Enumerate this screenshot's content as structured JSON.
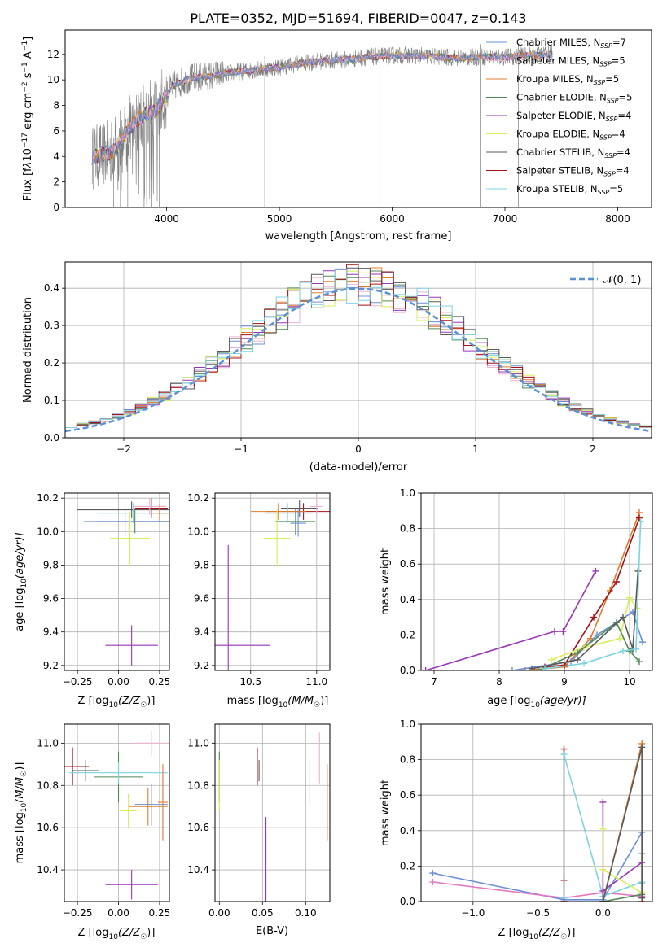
{
  "colors": {
    "chabrier_miles": "#6a8fd8",
    "salpeter_miles": "#e8b4d2",
    "kroupa_miles": "#e07b2a",
    "chabrier_elodie": "#4f8a55",
    "salpeter_elodie": "#9a34b8",
    "kroupa_elodie": "#d8ee5a",
    "chabrier_stelib": "#5a5a5a",
    "salpeter_stelib": "#a50f15",
    "kroupa_stelib": "#7dd3e0",
    "spectrum": "#7f7f7f",
    "normal": "#5b8fd6",
    "pink": "#e377c2"
  },
  "chart_data": [
    {
      "id": "spectrum",
      "type": "line",
      "title": "PLATE=0352, MJD=51694, FIBERID=0047, z=0.143",
      "xlabel": "wavelength [Angstrom, rest frame]",
      "ylabel_main": "Flux [f",
      "ylabel_lambda": "λ",
      "ylabel_rest": "10",
      "ylabel_exp1": "−17",
      "ylabel_mid": " erg cm",
      "ylabel_exp2": "−2",
      "ylabel_s": " s",
      "ylabel_exp3": "−1",
      "ylabel_end": " A",
      "ylabel_exp4": "−1",
      "ylabel_close": "]",
      "xlim": [
        3100,
        8300
      ],
      "ylim": [
        0,
        13.9
      ],
      "xticks": [
        "4000",
        "5000",
        "6000",
        "7000",
        "8000"
      ],
      "xtick_values": [
        4000,
        5000,
        6000,
        7000,
        8000
      ],
      "yticks": [
        "0",
        "2",
        "4",
        "6",
        "8",
        "10",
        "12"
      ],
      "ytick_values": [
        0,
        2,
        4,
        6,
        8,
        10,
        12
      ],
      "legend_position": "top-right",
      "legend": [
        {
          "label": "Chabrier MILES, N",
          "sub": "SSP",
          "count": "=7",
          "color_key": "chabrier_miles"
        },
        {
          "label": "Salpeter MILES, N",
          "sub": "SSP",
          "count": "=5",
          "color_key": "salpeter_miles"
        },
        {
          "label": "Kroupa MILES, N",
          "sub": "SSP",
          "count": "=5",
          "color_key": "kroupa_miles"
        },
        {
          "label": "Chabrier ELODIE, N",
          "sub": "SSP",
          "count": "=5",
          "color_key": "chabrier_elodie"
        },
        {
          "label": "Salpeter ELODIE, N",
          "sub": "SSP",
          "count": "=4",
          "color_key": "salpeter_elodie"
        },
        {
          "label": "Kroupa ELODIE, N",
          "sub": "SSP",
          "count": "=4",
          "color_key": "kroupa_elodie"
        },
        {
          "label": "Chabrier STELIB, N",
          "sub": "SSP",
          "count": "=4",
          "color_key": "chabrier_stelib"
        },
        {
          "label": "Salpeter STELIB, N",
          "sub": "SSP",
          "count": "=4",
          "color_key": "salpeter_stelib"
        },
        {
          "label": "Kroupa STELIB, N",
          "sub": "SSP",
          "count": "=5",
          "color_key": "kroupa_stelib"
        }
      ],
      "continuum": [
        [
          3330,
          3.9
        ],
        [
          3400,
          4.1
        ],
        [
          3500,
          4.3
        ],
        [
          3560,
          4.7
        ],
        [
          3620,
          5.6
        ],
        [
          3700,
          6.5
        ],
        [
          3800,
          7.3
        ],
        [
          3900,
          7.6
        ],
        [
          3960,
          8.3
        ],
        [
          4050,
          9.5
        ],
        [
          4200,
          10.1
        ],
        [
          4400,
          10.3
        ],
        [
          4600,
          10.6
        ],
        [
          4800,
          10.8
        ],
        [
          5000,
          11.0
        ],
        [
          5200,
          11.3
        ],
        [
          5400,
          11.5
        ],
        [
          5600,
          11.6
        ],
        [
          5800,
          11.8
        ],
        [
          6000,
          11.9
        ],
        [
          6200,
          11.9
        ],
        [
          6400,
          11.8
        ],
        [
          6600,
          11.7
        ],
        [
          6800,
          11.8
        ],
        [
          7000,
          11.8
        ],
        [
          7200,
          11.9
        ],
        [
          7420,
          12.0
        ]
      ],
      "spectrum_range": [
        3340,
        7420
      ],
      "deep_spikes": [
        3530,
        3590,
        3655,
        3800,
        3870,
        3935,
        4870,
        5890,
        6780,
        7120
      ]
    },
    {
      "id": "residuals",
      "type": "line",
      "xlabel": "(data-model)/error",
      "ylabel": "Normed distribution",
      "xlim": [
        -2.5,
        2.5
      ],
      "ylim": [
        0,
        0.47
      ],
      "xticks": [
        "−2",
        "−1",
        "0",
        "1",
        "2"
      ],
      "xtick_values": [
        -2,
        -1,
        0,
        1,
        2
      ],
      "yticks": [
        "0.0",
        "0.1",
        "0.2",
        "0.3",
        "0.4"
      ],
      "ytick_values": [
        0,
        0.1,
        0.2,
        0.3,
        0.4
      ],
      "grid": true,
      "legend_position": "top-right",
      "legend_label": "𝒩(0, 1)",
      "bin_width": 0.1
    },
    {
      "id": "age_z",
      "type": "scatter",
      "xlabel": "Z [log",
      "xlabel_sub": "10",
      "xlabel_rest": "(Z/Z",
      "xlabel_sun": "☉",
      "xlabel_close": ")]",
      "ylabel": "age  [log",
      "ylabel_sub": "10",
      "ylabel_rest": "(age/yr)]",
      "xlim": [
        -0.33,
        0.31
      ],
      "ylim": [
        9.17,
        10.23
      ],
      "xticks": [
        "−0.25",
        "0.00",
        "0.25"
      ],
      "xtick_values": [
        -0.25,
        0,
        0.25
      ],
      "yticks": [
        "9.2",
        "9.4",
        "9.6",
        "9.8",
        "10.0",
        "10.2"
      ],
      "ytick_values": [
        9.2,
        9.4,
        9.6,
        9.8,
        10.0,
        10.2
      ],
      "grid": true,
      "points": [
        {
          "x": 0.08,
          "y": 9.32,
          "xerr": 0.16,
          "yerr": 0.12,
          "color_key": "salpeter_elodie"
        },
        {
          "x": 0.08,
          "y": 10.13,
          "xerr": 0.33,
          "yerr": 0.05,
          "color_key": "chabrier_stelib"
        },
        {
          "x": 0.1,
          "y": 10.06,
          "xerr": 0.22,
          "yerr": 0.07,
          "color_key": "chabrier_elodie"
        },
        {
          "x": 0.2,
          "y": 10.14,
          "xerr": 0.1,
          "yerr": 0.06,
          "color_key": "salpeter_stelib"
        },
        {
          "x": 0.09,
          "y": 10.11,
          "xerr": 0.22,
          "yerr": 0.06,
          "color_key": "kroupa_stelib"
        },
        {
          "x": 0.25,
          "y": 10.11,
          "xerr": 0.06,
          "yerr": 0.05,
          "color_key": "kroupa_miles"
        },
        {
          "x": 0.19,
          "y": 10.15,
          "xerr": 0.1,
          "yerr": 0.05,
          "color_key": "salpeter_miles"
        },
        {
          "x": 0.04,
          "y": 10.06,
          "xerr": 0.25,
          "yerr": 0.09,
          "color_key": "chabrier_miles"
        },
        {
          "x": 0.07,
          "y": 9.96,
          "xerr": 0.12,
          "yerr": 0.16,
          "color_key": "kroupa_elodie"
        }
      ]
    },
    {
      "id": "age_mass",
      "type": "scatter",
      "xlabel": "mass [log",
      "xlabel_sub": "10",
      "xlabel_rest": "(M/M",
      "xlabel_sun": "☉",
      "xlabel_close": ")]",
      "xlim": [
        10.23,
        11.1
      ],
      "ylim": [
        9.17,
        10.23
      ],
      "xticks": [
        "10.5",
        "11.0"
      ],
      "xtick_values": [
        10.5,
        11.0
      ],
      "yticks": [
        "9.2",
        "9.4",
        "9.6",
        "9.8",
        "10.0",
        "10.2"
      ],
      "ytick_values": [
        9.2,
        9.4,
        9.6,
        9.8,
        10.0,
        10.2
      ],
      "grid": true,
      "points": [
        {
          "x": 10.33,
          "y": 9.32,
          "xerr": 0.32,
          "yerr": 0.6,
          "color_key": "salpeter_elodie"
        },
        {
          "x": 10.87,
          "y": 10.14,
          "xerr": 0.14,
          "yerr": 0.05,
          "color_key": "chabrier_stelib"
        },
        {
          "x": 10.84,
          "y": 10.06,
          "xerr": 0.15,
          "yerr": 0.08,
          "color_key": "chabrier_elodie"
        },
        {
          "x": 10.9,
          "y": 10.12,
          "xerr": 0.28,
          "yerr": 0.05,
          "color_key": "salpeter_stelib"
        },
        {
          "x": 10.78,
          "y": 10.11,
          "xerr": 0.18,
          "yerr": 0.06,
          "color_key": "kroupa_stelib"
        },
        {
          "x": 10.71,
          "y": 10.12,
          "xerr": 0.21,
          "yerr": 0.05,
          "color_key": "kroupa_miles"
        },
        {
          "x": 11.0,
          "y": 10.15,
          "xerr": 0.05,
          "yerr": 0.06,
          "color_key": "salpeter_miles"
        },
        {
          "x": 10.86,
          "y": 10.05,
          "xerr": 0.06,
          "yerr": 0.08,
          "color_key": "chabrier_miles"
        },
        {
          "x": 10.7,
          "y": 9.96,
          "xerr": 0.1,
          "yerr": 0.17,
          "color_key": "kroupa_elodie"
        }
      ]
    },
    {
      "id": "weight_age",
      "type": "line",
      "xlabel": "age  [log",
      "xlabel_sub": "10",
      "xlabel_rest": "(age/yr)]",
      "ylabel": "mass weight",
      "xlim": [
        6.8,
        10.35
      ],
      "ylim": [
        0,
        1.0
      ],
      "xticks": [
        "7",
        "8",
        "9",
        "10"
      ],
      "xtick_values": [
        7,
        8,
        9,
        10
      ],
      "yticks": [
        "0.0",
        "0.2",
        "0.4",
        "0.6",
        "0.8",
        "1.0"
      ],
      "ytick_values": [
        0,
        0.2,
        0.4,
        0.6,
        0.8,
        1.0
      ],
      "grid": true,
      "series": [
        {
          "color_key": "salpeter_elodie",
          "x": [
            6.87,
            8.85,
            8.98,
            9.48
          ],
          "y": [
            0.0,
            0.22,
            0.22,
            0.56
          ]
        },
        {
          "color_key": "kroupa_miles",
          "x": [
            8.4,
            9.0,
            9.4,
            9.7,
            10.15
          ],
          "y": [
            0.0,
            0.02,
            0.18,
            0.45,
            0.89
          ]
        },
        {
          "color_key": "salpeter_stelib",
          "x": [
            8.7,
            9.0,
            9.45,
            9.8,
            10.15
          ],
          "y": [
            0.02,
            0.03,
            0.3,
            0.5,
            0.86
          ]
        },
        {
          "color_key": "chabrier_miles",
          "x": [
            8.2,
            9.1,
            9.5,
            10.05,
            10.2
          ],
          "y": [
            0.0,
            0.05,
            0.2,
            0.33,
            0.16
          ]
        },
        {
          "color_key": "kroupa_elodie",
          "x": [
            8.8,
            9.3,
            9.85,
            10.0,
            10.12
          ],
          "y": [
            0.06,
            0.13,
            0.18,
            0.41,
            0.35
          ]
        },
        {
          "color_key": "chabrier_elodie",
          "x": [
            8.6,
            9.2,
            9.8,
            10.0,
            10.15
          ],
          "y": [
            0.0,
            0.1,
            0.27,
            0.11,
            0.05
          ]
        },
        {
          "color_key": "chabrier_stelib",
          "x": [
            8.5,
            9.2,
            9.9,
            10.05,
            10.13
          ],
          "y": [
            0.01,
            0.06,
            0.3,
            0.12,
            0.56
          ]
        },
        {
          "color_key": "kroupa_stelib",
          "x": [
            8.7,
            9.3,
            9.9,
            10.1,
            10.17
          ],
          "y": [
            0.01,
            0.04,
            0.11,
            0.12,
            0.84
          ]
        }
      ]
    },
    {
      "id": "mass_z",
      "type": "scatter",
      "xlabel": "Z [log",
      "xlabel_sub": "10",
      "xlabel_rest": "(Z/Z",
      "xlabel_sun": "☉",
      "xlabel_close": ")]",
      "ylabel": "mass [log",
      "ylabel_sub": "10",
      "ylabel_rest": "(M/M",
      "ylabel_sun": "☉",
      "ylabel_close": ")]",
      "xlim": [
        -0.33,
        0.31
      ],
      "ylim": [
        10.25,
        11.09
      ],
      "xticks": [
        "−0.25",
        "0.00",
        "0.25"
      ],
      "xtick_values": [
        -0.25,
        0,
        0.25
      ],
      "yticks": [
        "10.4",
        "10.6",
        "10.8",
        "11.0"
      ],
      "ytick_values": [
        10.4,
        10.6,
        10.8,
        11.0
      ],
      "grid": true,
      "points": [
        {
          "x": 0.08,
          "y": 10.33,
          "xerr": 0.16,
          "yerr": 0.07,
          "color_key": "salpeter_elodie"
        },
        {
          "x": -0.28,
          "y": 10.89,
          "xerr": 0.1,
          "yerr": 0.09,
          "color_key": "salpeter_stelib"
        },
        {
          "x": -0.2,
          "y": 10.87,
          "xerr": 0.08,
          "yerr": 0.05,
          "color_key": "chabrier_stelib"
        },
        {
          "x": 0.0,
          "y": 10.84,
          "xerr": 0.15,
          "yerr": 0.12,
          "color_key": "chabrier_elodie"
        },
        {
          "x": 0.0,
          "y": 10.86,
          "xerr": 0.3,
          "yerr": 0.05,
          "color_key": "kroupa_stelib"
        },
        {
          "x": 0.2,
          "y": 10.71,
          "xerr": 0.1,
          "yerr": 0.1,
          "color_key": "chabrier_miles"
        },
        {
          "x": 0.18,
          "y": 10.7,
          "xerr": 0.12,
          "yerr": 0.09,
          "color_key": "kroupa_miles"
        },
        {
          "x": 0.06,
          "y": 10.68,
          "xerr": 0.05,
          "yerr": 0.08,
          "color_key": "kroupa_elodie"
        },
        {
          "x": 0.2,
          "y": 11.0,
          "xerr": 0.11,
          "yerr": 0.06,
          "color_key": "salpeter_miles"
        },
        {
          "x": 0.27,
          "y": 10.72,
          "xerr": 0.03,
          "yerr": 0.18,
          "color_key": "kroupa_miles"
        }
      ]
    },
    {
      "id": "mass_ebv",
      "type": "scatter",
      "xlabel": "E(B-V)",
      "xlim": [
        -0.005,
        0.128
      ],
      "ylim": [
        10.25,
        11.09
      ],
      "xticks": [
        "0.00",
        "0.05",
        "0.10"
      ],
      "xtick_values": [
        0,
        0.05,
        0.1
      ],
      "yticks": [
        "10.4",
        "10.6",
        "10.8",
        "11.0"
      ],
      "ytick_values": [
        10.4,
        10.6,
        10.8,
        11.0
      ],
      "grid": true,
      "points": [
        {
          "x": 0.0,
          "y": 10.84,
          "yerr": 0.12,
          "color_key": "chabrier_elodie"
        },
        {
          "x": 0.0,
          "y": 10.8,
          "yerr": 0.12,
          "color_key": "kroupa_elodie"
        },
        {
          "x": 0.044,
          "y": 10.89,
          "yerr": 0.09,
          "color_key": "salpeter_stelib"
        },
        {
          "x": 0.046,
          "y": 10.87,
          "yerr": 0.05,
          "color_key": "chabrier_stelib"
        },
        {
          "x": 0.054,
          "y": 10.45,
          "yerr": 0.2,
          "color_key": "salpeter_elodie"
        },
        {
          "x": 0.104,
          "y": 10.81,
          "yerr": 0.1,
          "color_key": "chabrier_miles"
        },
        {
          "x": 0.116,
          "y": 10.93,
          "yerr": 0.12,
          "color_key": "salpeter_miles"
        },
        {
          "x": 0.125,
          "y": 10.72,
          "yerr": 0.18,
          "color_key": "kroupa_miles"
        }
      ]
    },
    {
      "id": "weight_z",
      "type": "line",
      "xlabel": "Z [log",
      "xlabel_sub": "10",
      "xlabel_rest": "(Z/Z",
      "xlabel_sun": "☉",
      "xlabel_close": ")]",
      "ylabel": "mass weight",
      "xlim": [
        -1.4,
        0.38
      ],
      "ylim": [
        0,
        1.0
      ],
      "xticks": [
        "−1.0",
        "−0.5",
        "0.0"
      ],
      "xtick_values": [
        -1.0,
        -0.5,
        0.0
      ],
      "yticks": [
        "0.0",
        "0.2",
        "0.4",
        "0.6",
        "0.8",
        "1.0"
      ],
      "ytick_values": [
        0,
        0.2,
        0.4,
        0.6,
        0.8,
        1.0
      ],
      "grid": true,
      "series": [
        {
          "color_key": "chabrier_miles",
          "x": [
            -1.31,
            -0.3,
            0.0,
            0.3,
            0.3
          ],
          "y": [
            0.16,
            0.01,
            0.01,
            0.39,
            0.1
          ]
        },
        {
          "color_key": "pink",
          "x": [
            -1.31,
            -0.3,
            0.0,
            0.3
          ],
          "y": [
            0.11,
            0.02,
            0.05,
            0.03
          ]
        },
        {
          "color_key": "salpeter_stelib",
          "x": [
            -0.3,
            -0.3,
            -0.3
          ],
          "y": [
            0.0,
            0.86,
            0.12
          ]
        },
        {
          "color_key": "kroupa_stelib",
          "x": [
            -0.3,
            -0.3,
            0.0,
            0.3
          ],
          "y": [
            0.02,
            0.83,
            0.03,
            0.11
          ]
        },
        {
          "color_key": "salpeter_elodie",
          "x": [
            0.0,
            0.0,
            0.0,
            0.3
          ],
          "y": [
            0.0,
            0.56,
            0.06,
            0.22
          ]
        },
        {
          "color_key": "kroupa_elodie",
          "x": [
            0.0,
            0.0,
            0.3
          ],
          "y": [
            0.41,
            0.18,
            0.05
          ]
        },
        {
          "color_key": "chabrier_elodie",
          "x": [
            0.0,
            0.3,
            0.3
          ],
          "y": [
            0.0,
            0.04,
            0.27
          ]
        },
        {
          "color_key": "kroupa_miles",
          "x": [
            0.0,
            0.3,
            0.3
          ],
          "y": [
            0.0,
            0.89,
            0.0
          ]
        },
        {
          "color_key": "chabrier_stelib",
          "x": [
            0.0,
            0.3,
            0.3
          ],
          "y": [
            0.0,
            0.87,
            0.02
          ]
        }
      ]
    }
  ]
}
